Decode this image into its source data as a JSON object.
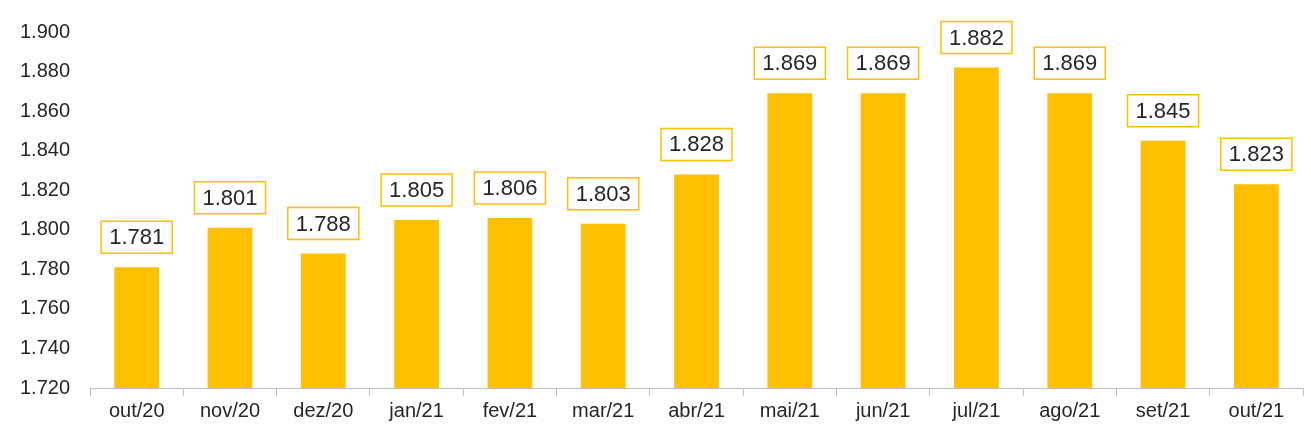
{
  "chart_data": {
    "type": "bar",
    "categories": [
      "out/20",
      "nov/20",
      "dez/20",
      "jan/21",
      "fev/21",
      "mar/21",
      "abr/21",
      "mai/21",
      "jun/21",
      "jul/21",
      "ago/21",
      "set/21",
      "out/21"
    ],
    "values": [
      1781,
      1801,
      1788,
      1805,
      1806,
      1803,
      1828,
      1869,
      1869,
      1882,
      1869,
      1845,
      1823
    ],
    "value_labels": [
      "1.781",
      "1.801",
      "1.788",
      "1.805",
      "1.806",
      "1.803",
      "1.828",
      "1.869",
      "1.869",
      "1.882",
      "1.869",
      "1.845",
      "1.823"
    ],
    "color": "#ffc000",
    "ylim": [
      1720,
      1900
    ],
    "yticks": [
      {
        "value": 1720,
        "label": "1.720"
      },
      {
        "value": 1740,
        "label": "1.740"
      },
      {
        "value": 1760,
        "label": "1.760"
      },
      {
        "value": 1780,
        "label": "1.780"
      },
      {
        "value": 1800,
        "label": "1.800"
      },
      {
        "value": 1820,
        "label": "1.820"
      },
      {
        "value": 1840,
        "label": "1.840"
      },
      {
        "value": 1860,
        "label": "1.860"
      },
      {
        "value": 1880,
        "label": "1.880"
      },
      {
        "value": 1900,
        "label": "1.900"
      }
    ],
    "grid": false,
    "legend": false
  }
}
